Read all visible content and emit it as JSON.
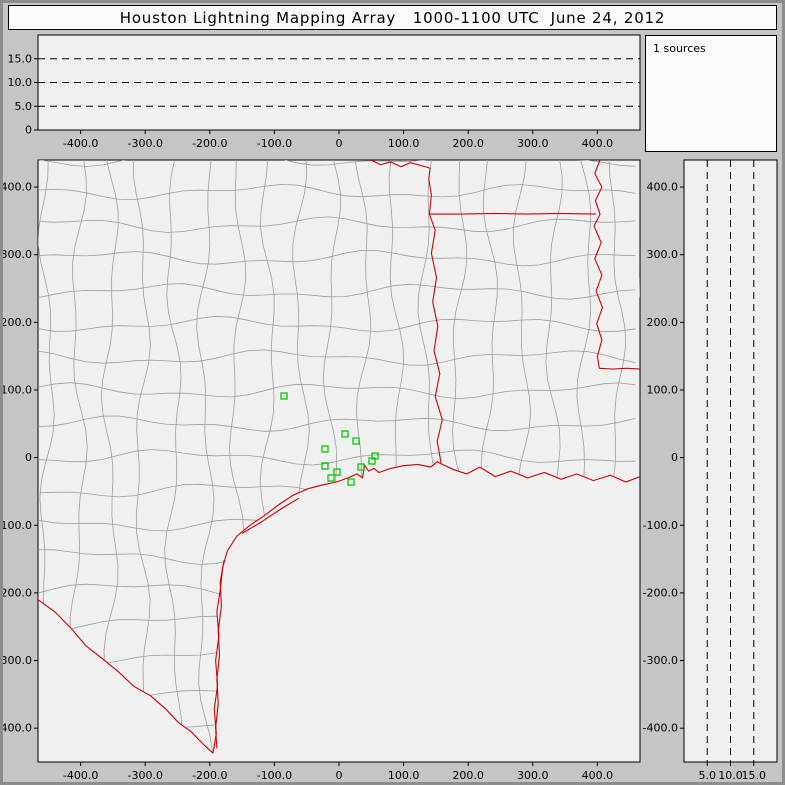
{
  "header": {
    "title": "Houston Lightning Mapping Array   1000-1100 UTC  June 24, 2012"
  },
  "sources_panel": {
    "label": "1 sources"
  },
  "chart_data": {
    "type": "scatter",
    "title": "Houston Lightning Mapping Array",
    "subtitle": "1000-1100 UTC June 24, 2012",
    "sources_count": 1,
    "colors": {
      "state_border": "#d40000",
      "county_line": "#9c9c9c",
      "station_green": "#00cc00",
      "panel_bg": "#f0f0f0",
      "frame_bg": "#c5c5c5",
      "axis": "#000000"
    },
    "panels": {
      "alt_ew": {
        "description": "altitude (km) vs east-west distance (km)",
        "xlim": [
          -466,
          466
        ],
        "ylim": [
          0,
          20
        ],
        "x_tick_values": [
          -400,
          -300,
          -200,
          -100,
          0,
          100,
          200,
          300,
          400
        ],
        "x_tick_labels": [
          "-400.0",
          "-300.0",
          "-200.0",
          "-100.0",
          "0",
          "100.0",
          "200.0",
          "300.0",
          "400.0"
        ],
        "y_tick_values": [
          0,
          5,
          10,
          15
        ],
        "y_tick_labels": [
          "0",
          "5.0",
          "10.0",
          "15.0"
        ],
        "dashed_altitudes": [
          5,
          10,
          15
        ],
        "points": []
      },
      "plan_view": {
        "description": "plan view map, distances in km from network center",
        "xlim": [
          -466,
          466
        ],
        "ylim": [
          -450,
          440
        ],
        "x_tick_values": [
          -400,
          -300,
          -200,
          -100,
          0,
          100,
          200,
          300,
          400
        ],
        "x_tick_labels": [
          "-400.0",
          "-300.0",
          "-200.0",
          "-100.0",
          "0",
          "100.0",
          "200.0",
          "300.0",
          "400.0"
        ],
        "y_tick_values": [
          400,
          300,
          200,
          100,
          0,
          -100,
          -200,
          -300,
          -400
        ],
        "y_tick_labels": [
          "400.0",
          "300.0",
          "200.0",
          "100.0",
          "0",
          "-100.0",
          "-200.0",
          "-300.0",
          "-400.0"
        ],
        "stations_km": [
          [
            -85.1,
            91.1
          ],
          [
            -21.7,
            12.7
          ],
          [
            9.3,
            34.9
          ],
          [
            26.3,
            24.5
          ],
          [
            -21.7,
            -12.4
          ],
          [
            -3.1,
            -21.3
          ],
          [
            -12.4,
            -30.2
          ],
          [
            18.6,
            -36.1
          ],
          [
            34.1,
            -13.9
          ],
          [
            51.1,
            -5.0
          ],
          [
            55.7,
            2.4
          ]
        ],
        "points": [],
        "basemap": {
          "rio_grande": [
            [
              -466,
              -210
            ],
            [
              -440,
              -228
            ],
            [
              -415,
              -252
            ],
            [
              -392,
              -278
            ],
            [
              -368,
              -296
            ],
            [
              -340,
              -318
            ],
            [
              -318,
              -338
            ],
            [
              -292,
              -352
            ],
            [
              -268,
              -372
            ],
            [
              -248,
              -392
            ],
            [
              -228,
              -406
            ],
            [
              -212,
              -422
            ],
            [
              -195,
              -437
            ]
          ],
          "coastline": [
            [
              -195,
              -437
            ],
            [
              -190,
              -408
            ],
            [
              -193,
              -372
            ],
            [
              -188,
              -336
            ],
            [
              -191,
              -300
            ],
            [
              -186,
              -264
            ],
            [
              -189,
              -228
            ],
            [
              -184,
              -196
            ],
            [
              -180,
              -162
            ],
            [
              -173,
              -138
            ],
            [
              -158,
              -116
            ],
            [
              -138,
              -100
            ],
            [
              -116,
              -86
            ],
            [
              -94,
              -70
            ],
            [
              -72,
              -56
            ],
            [
              -48,
              -46
            ],
            [
              -24,
              -40
            ],
            [
              -4,
              -36
            ],
            [
              14,
              -30
            ],
            [
              28,
              -24
            ],
            [
              36,
              -30
            ],
            [
              40,
              -12
            ],
            [
              46,
              -20
            ],
            [
              54,
              -16
            ],
            [
              62,
              -22
            ],
            [
              80,
              -16
            ],
            [
              100,
              -12
            ],
            [
              122,
              -10
            ],
            [
              142,
              -14
            ],
            [
              152,
              -6
            ],
            [
              160,
              -10
            ],
            [
              178,
              -18
            ],
            [
              198,
              -24
            ],
            [
              218,
              -14
            ],
            [
              242,
              -28
            ],
            [
              266,
              -20
            ],
            [
              292,
              -30
            ],
            [
              318,
              -22
            ],
            [
              344,
              -32
            ],
            [
              368,
              -24
            ],
            [
              394,
              -34
            ],
            [
              420,
              -26
            ],
            [
              444,
              -36
            ],
            [
              466,
              -28
            ]
          ],
          "padre_island": [
            [
              -178,
              -152
            ],
            [
              -184,
              -184
            ],
            [
              -182,
              -220
            ],
            [
              -187,
              -256
            ],
            [
              -185,
              -292
            ],
            [
              -189,
              -328
            ],
            [
              -187,
              -364
            ],
            [
              -191,
              -400
            ],
            [
              -189,
              -430
            ]
          ],
          "matagorda_island": [
            [
              -150,
              -112
            ],
            [
              -120,
              -95
            ],
            [
              -90,
              -76
            ],
            [
              -62,
              -60
            ]
          ],
          "tx_la_border": [
            [
              158,
              -8
            ],
            [
              152,
              24
            ],
            [
              160,
              56
            ],
            [
              149,
              90
            ],
            [
              156,
              124
            ],
            [
              147,
              158
            ],
            [
              153,
              194
            ],
            [
              145,
              230
            ],
            [
              151,
              266
            ],
            [
              143,
              302
            ],
            [
              149,
              336
            ],
            [
              140,
              360
            ]
          ],
          "tx_ar_border": [
            [
              140,
              360
            ],
            [
              143,
              388
            ],
            [
              139,
              412
            ],
            [
              141,
              428
            ]
          ],
          "red_river": [
            [
              141,
              428
            ],
            [
              126,
              432
            ],
            [
              110,
              436
            ],
            [
              96,
              430
            ],
            [
              80,
              437
            ],
            [
              64,
              433
            ],
            [
              52,
              439
            ],
            [
              46,
              440
            ]
          ],
          "ar_la_border": [
            [
              140,
              360
            ],
            [
              190,
              360
            ],
            [
              240,
              361
            ],
            [
              290,
              360
            ],
            [
              340,
              361
            ],
            [
              398,
              360
            ]
          ],
          "ms_river": [
            [
              404,
              440
            ],
            [
              396,
              420
            ],
            [
              407,
              400
            ],
            [
              397,
              380
            ],
            [
              404,
              360
            ],
            [
              395,
              342
            ],
            [
              406,
              318
            ],
            [
              396,
              294
            ],
            [
              407,
              270
            ],
            [
              398,
              246
            ],
            [
              408,
              222
            ],
            [
              399,
              198
            ],
            [
              407,
              174
            ],
            [
              400,
              150
            ],
            [
              403,
              132
            ]
          ],
          "la_ms_31n": [
            [
              403,
              132
            ],
            [
              424,
              131
            ],
            [
              445,
              132
            ],
            [
              466,
              131
            ]
          ]
        }
      },
      "alt_ns": {
        "description": "north-south distance (km) vs altitude (km)",
        "xlim": [
          0,
          20
        ],
        "ylim": [
          -450,
          440
        ],
        "x_tick_values": [
          5,
          10,
          15
        ],
        "x_tick_labels": [
          "5.0",
          "10.0",
          "15.0"
        ],
        "y_tick_values": [
          400,
          300,
          200,
          100,
          0,
          -100,
          -200,
          -300,
          -400
        ],
        "y_tick_labels": [
          "400.0",
          "300.0",
          "200.0",
          "100.0",
          "0",
          "-100.0",
          "-200.0",
          "-300.0",
          "-400.0"
        ],
        "dashed_altitudes": [
          5,
          10,
          15
        ],
        "points": []
      }
    }
  }
}
